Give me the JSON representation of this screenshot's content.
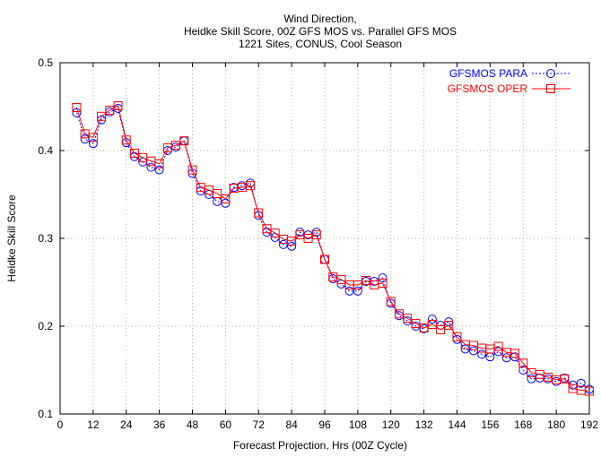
{
  "chart_data": {
    "type": "line",
    "title": [
      "Wind Direction,",
      "Heidke Skill Score, 00Z GFS MOS vs. Parallel GFS MOS",
      "1221 Sites, CONUS, Cool Season"
    ],
    "xlabel": "Forecast Projection, Hrs (00Z Cycle)",
    "ylabel": "Heidke Skill Score",
    "xlim": [
      0,
      192
    ],
    "ylim": [
      0.1,
      0.5
    ],
    "xticks": [
      0,
      12,
      24,
      36,
      48,
      60,
      72,
      84,
      96,
      108,
      120,
      132,
      144,
      156,
      168,
      180,
      192
    ],
    "xtick_labels": [
      "0",
      "12",
      "24",
      "36",
      "48",
      "60",
      "72",
      "84",
      "96",
      "108",
      "120",
      "132",
      "144",
      "156",
      "168",
      "180",
      "192"
    ],
    "yticks": [
      0.1,
      0.2,
      0.3,
      0.4,
      0.5
    ],
    "ytick_labels": [
      "0.1",
      "0.2",
      "0.3",
      "0.4",
      "0.5"
    ],
    "grid": true,
    "legend_position": "top-right",
    "x": [
      6,
      9,
      12,
      15,
      18,
      21,
      24,
      27,
      30,
      33,
      36,
      39,
      42,
      45,
      48,
      51,
      54,
      57,
      60,
      63,
      66,
      69,
      72,
      75,
      78,
      81,
      84,
      87,
      90,
      93,
      96,
      99,
      102,
      105,
      108,
      111,
      114,
      117,
      120,
      123,
      126,
      129,
      132,
      135,
      138,
      141,
      144,
      147,
      150,
      153,
      156,
      159,
      162,
      165,
      168,
      171,
      174,
      177,
      180,
      183,
      186,
      189,
      192
    ],
    "series": [
      {
        "name": "GFSMOS PARA",
        "color": "#0000ff",
        "line_style": "dotted",
        "marker": "circle",
        "values": [
          0.443,
          0.413,
          0.408,
          0.435,
          0.444,
          0.448,
          0.409,
          0.393,
          0.387,
          0.381,
          0.378,
          0.4,
          0.404,
          0.411,
          0.374,
          0.354,
          0.35,
          0.342,
          0.34,
          0.358,
          0.36,
          0.363,
          0.326,
          0.307,
          0.301,
          0.293,
          0.291,
          0.307,
          0.304,
          0.307,
          0.276,
          0.254,
          0.248,
          0.24,
          0.24,
          0.251,
          0.251,
          0.255,
          0.226,
          0.212,
          0.206,
          0.2,
          0.197,
          0.208,
          0.201,
          0.205,
          0.185,
          0.174,
          0.172,
          0.168,
          0.165,
          0.171,
          0.164,
          0.165,
          0.15,
          0.14,
          0.141,
          0.14,
          0.137,
          0.141,
          0.133,
          0.135,
          0.128
        ]
      },
      {
        "name": "GFSMOS OPER",
        "color": "#ff0000",
        "line_style": "solid",
        "marker": "square",
        "values": [
          0.449,
          0.419,
          0.415,
          0.439,
          0.446,
          0.451,
          0.412,
          0.397,
          0.392,
          0.388,
          0.385,
          0.403,
          0.406,
          0.411,
          0.378,
          0.358,
          0.355,
          0.351,
          0.345,
          0.357,
          0.358,
          0.36,
          0.329,
          0.311,
          0.306,
          0.299,
          0.297,
          0.304,
          0.3,
          0.304,
          0.276,
          0.256,
          0.253,
          0.247,
          0.247,
          0.252,
          0.247,
          0.249,
          0.228,
          0.214,
          0.209,
          0.203,
          0.198,
          0.202,
          0.196,
          0.201,
          0.188,
          0.179,
          0.178,
          0.175,
          0.174,
          0.177,
          0.17,
          0.169,
          0.158,
          0.147,
          0.145,
          0.142,
          0.139,
          0.14,
          0.129,
          0.127,
          0.126
        ]
      }
    ]
  }
}
